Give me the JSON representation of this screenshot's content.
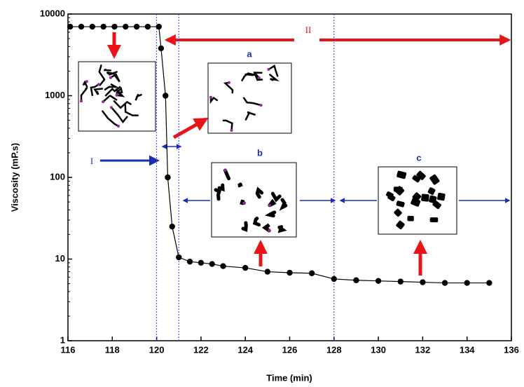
{
  "chart_data": {
    "type": "line",
    "xlabel": "Time (min)",
    "ylabel": "Viscosity (mP.s)",
    "x": [
      116.1,
      116.6,
      117.1,
      117.6,
      118.1,
      118.6,
      119.1,
      119.6,
      120.1,
      120.2,
      120.4,
      120.5,
      120.7,
      121,
      121.5,
      122,
      122.5,
      123,
      124,
      125,
      126,
      127,
      128,
      129,
      130,
      131,
      132,
      133,
      134,
      135
    ],
    "series": [
      {
        "color": "#000000",
        "values": [
          7000,
          7000,
          7000,
          7000,
          7000,
          7000,
          7000,
          7000,
          7000,
          3800,
          1000,
          100,
          25,
          10.5,
          9.3,
          9,
          8.7,
          8.2,
          7.8,
          7,
          6.8,
          6.7,
          5.7,
          5.5,
          5.4,
          5.3,
          5.2,
          5.1,
          5.1,
          5.1
        ]
      }
    ],
    "xlim": [
      116,
      136
    ],
    "xticks": [
      116,
      118,
      120,
      122,
      124,
      126,
      128,
      130,
      132,
      134,
      136
    ],
    "ylim": [
      1,
      10000
    ],
    "yticks": [
      1,
      10,
      100,
      1000,
      10000
    ],
    "log_y": true,
    "vlines": [
      120,
      121,
      128
    ],
    "annotations": {
      "region_1": "I",
      "region_2": "II",
      "a": "a",
      "b": "b",
      "c": "c"
    }
  }
}
